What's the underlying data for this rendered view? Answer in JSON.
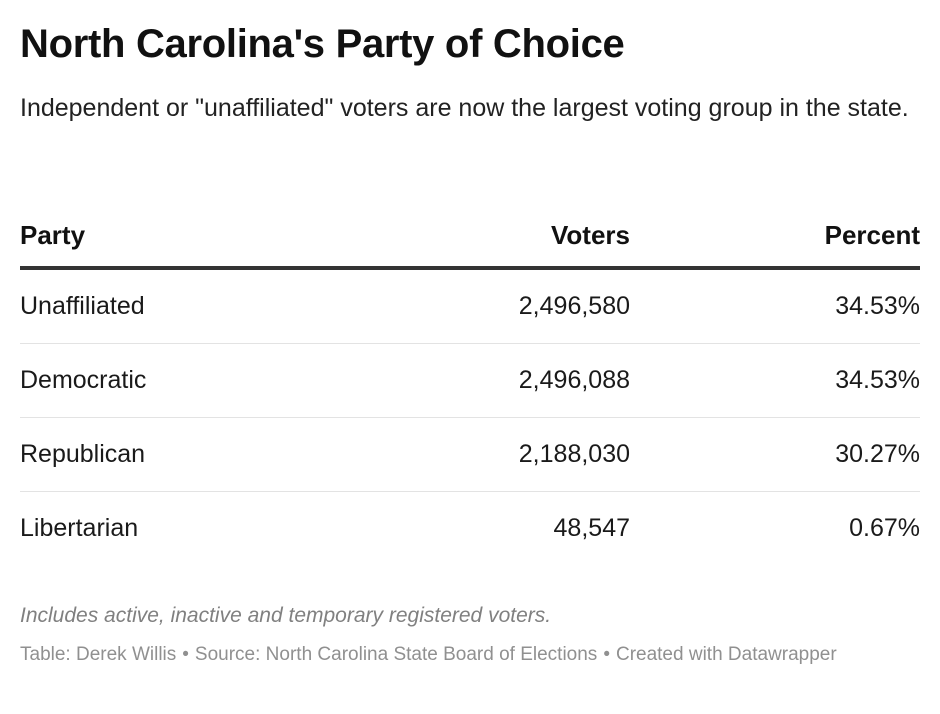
{
  "title": "North Carolina's Party of Choice",
  "subtitle": "Independent or \"unaffiliated\" voters are now the largest voting group in the state.",
  "chart_data": {
    "type": "table",
    "columns": [
      "Party",
      "Voters",
      "Percent"
    ],
    "rows": [
      [
        "Unaffiliated",
        "2,496,580",
        "34.53%"
      ],
      [
        "Democratic",
        "2,496,088",
        "34.53%"
      ],
      [
        "Republican",
        "2,188,030",
        "30.27%"
      ],
      [
        "Libertarian",
        "48,547",
        "0.67%"
      ]
    ]
  },
  "note": "Includes active, inactive and temporary registered voters.",
  "footer": {
    "table_credit": "Table: Derek Willis",
    "separator": "•",
    "source": "Source: North Carolina State Board of Elections",
    "created_with": "Created with Datawrapper"
  }
}
